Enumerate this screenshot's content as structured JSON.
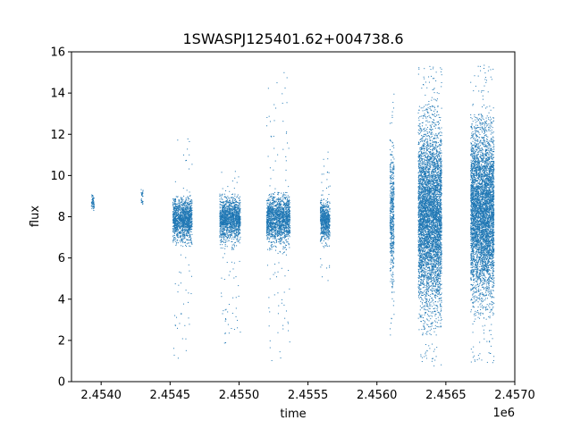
{
  "chart_data": {
    "type": "scatter",
    "title": "1SWASPJ125401.62+004738.6",
    "xlabel": "time",
    "ylabel": "flux",
    "x_offset_label": "1e6",
    "xlim": [
      2453785,
      2457000
    ],
    "ylim": [
      0,
      16
    ],
    "xticks": [
      2454000,
      2454500,
      2455000,
      2455500,
      2456000,
      2456500,
      2457000
    ],
    "xtick_labels": [
      "2.4540",
      "2.4545",
      "2.4550",
      "2.4555",
      "2.4560",
      "2.4565",
      "2.4570"
    ],
    "yticks": [
      0,
      2,
      4,
      6,
      8,
      10,
      12,
      14,
      16
    ],
    "ytick_labels": [
      "0",
      "2",
      "4",
      "6",
      "8",
      "10",
      "12",
      "14",
      "16"
    ],
    "grid": false,
    "marker_color": "#1f77b4",
    "clusters": [
      {
        "x_start": 2453930,
        "x_end": 2453950,
        "y_center": 8.7,
        "y_spread": 0.25,
        "core_lo": 8.4,
        "core_hi": 9.1,
        "outlier_lo": 8.3,
        "outlier_hi": 9.2,
        "density": 60
      },
      {
        "x_start": 2454290,
        "x_end": 2454305,
        "y_center": 8.9,
        "y_spread": 0.3,
        "core_lo": 8.6,
        "core_hi": 9.3,
        "outlier_lo": 8.5,
        "outlier_hi": 9.8,
        "density": 30
      },
      {
        "x_start": 2454520,
        "x_end": 2454660,
        "y_center": 7.9,
        "y_spread": 0.5,
        "core_lo": 6.5,
        "core_hi": 9.0,
        "outlier_lo": 1.0,
        "outlier_hi": 11.8,
        "density": 1400
      },
      {
        "x_start": 2454860,
        "x_end": 2455010,
        "y_center": 7.9,
        "y_spread": 0.5,
        "core_lo": 6.4,
        "core_hi": 9.1,
        "outlier_lo": 1.5,
        "outlier_hi": 10.4,
        "density": 1500
      },
      {
        "x_start": 2455200,
        "x_end": 2455370,
        "y_center": 7.9,
        "y_spread": 0.55,
        "core_lo": 6.2,
        "core_hi": 9.2,
        "outlier_lo": 0.8,
        "outlier_hi": 15.1,
        "density": 1700
      },
      {
        "x_start": 2455590,
        "x_end": 2455660,
        "y_center": 7.8,
        "y_spread": 0.45,
        "core_lo": 6.5,
        "core_hi": 9.0,
        "outlier_lo": 4.8,
        "outlier_hi": 11.4,
        "density": 700
      },
      {
        "x_start": 2456095,
        "x_end": 2456125,
        "y_center": 8.0,
        "y_spread": 1.6,
        "core_lo": 4.0,
        "core_hi": 12.0,
        "outlier_lo": 2.2,
        "outlier_hi": 14.1,
        "density": 500
      },
      {
        "x_start": 2456300,
        "x_end": 2456470,
        "y_center": 8.0,
        "y_spread": 2.1,
        "core_lo": 2.5,
        "core_hi": 13.5,
        "outlier_lo": 0.7,
        "outlier_hi": 15.3,
        "density": 5000
      },
      {
        "x_start": 2456680,
        "x_end": 2456850,
        "y_center": 8.2,
        "y_spread": 2.0,
        "core_lo": 3.0,
        "core_hi": 13.0,
        "outlier_lo": 0.8,
        "outlier_hi": 15.4,
        "density": 5000
      }
    ]
  }
}
